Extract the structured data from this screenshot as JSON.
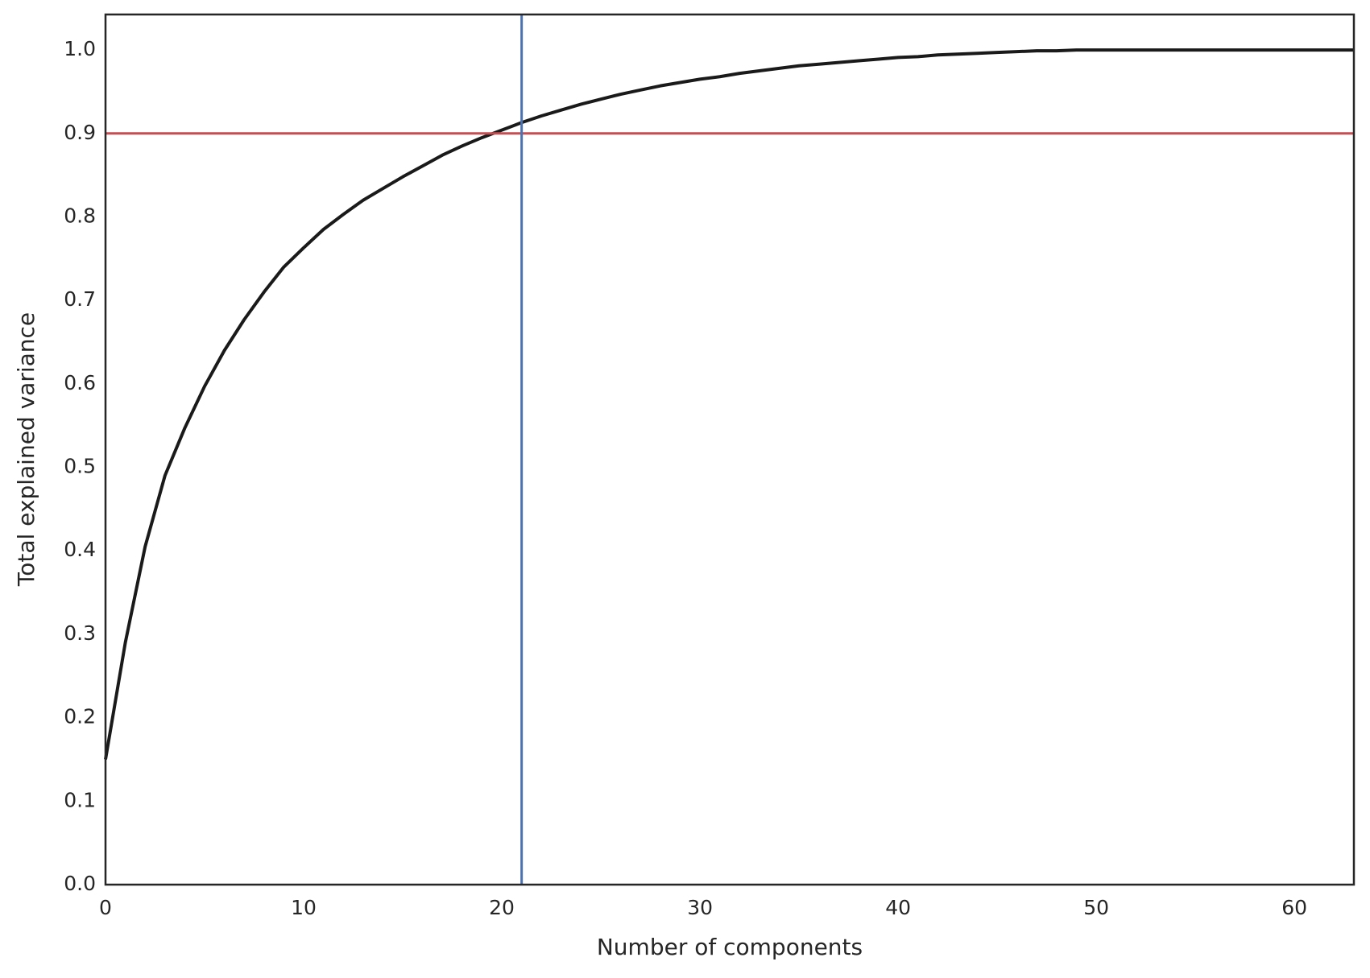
{
  "chart_data": {
    "type": "line",
    "xlabel": "Number of components",
    "ylabel": "Total explained variance",
    "x": [
      0,
      1,
      2,
      3,
      4,
      5,
      6,
      7,
      8,
      9,
      10,
      11,
      12,
      13,
      14,
      15,
      16,
      17,
      18,
      19,
      20,
      21,
      22,
      23,
      24,
      25,
      26,
      27,
      28,
      29,
      30,
      31,
      32,
      33,
      34,
      35,
      36,
      37,
      38,
      39,
      40,
      41,
      42,
      43,
      44,
      45,
      46,
      47,
      48,
      49,
      50,
      51,
      52,
      53,
      54,
      55,
      56,
      57,
      58,
      59,
      60,
      61,
      62,
      63
    ],
    "series": [
      {
        "color": "#1a1a1a",
        "values": [
          0.15,
          0.29,
          0.405,
          0.49,
          0.547,
          0.597,
          0.64,
          0.677,
          0.71,
          0.74,
          0.763,
          0.785,
          0.803,
          0.82,
          0.834,
          0.848,
          0.861,
          0.874,
          0.885,
          0.895,
          0.904,
          0.913,
          0.921,
          0.928,
          0.935,
          0.941,
          0.947,
          0.952,
          0.957,
          0.961,
          0.965,
          0.968,
          0.972,
          0.975,
          0.978,
          0.981,
          0.983,
          0.985,
          0.987,
          0.989,
          0.991,
          0.992,
          0.994,
          0.995,
          0.996,
          0.997,
          0.998,
          0.999,
          0.999,
          1.0,
          1.0,
          1.0,
          1.0,
          1.0,
          1.0,
          1.0,
          1.0,
          1.0,
          1.0,
          1.0,
          1.0,
          1.0,
          1.0,
          1.0
        ]
      }
    ],
    "hlines": [
      {
        "value": 0.9,
        "color": "#c44e52"
      }
    ],
    "vlines": [
      {
        "value": 21,
        "color": "#4c72b0"
      }
    ],
    "xlim": [
      0,
      63
    ],
    "ylim": [
      0,
      1.0425
    ],
    "xticks": [
      0,
      10,
      20,
      30,
      40,
      50,
      60
    ],
    "yticks": [
      {
        "value": 0,
        "label": "0.0"
      },
      0.1,
      0.2,
      0.3,
      0.4,
      0.5,
      0.6,
      0.7,
      0.8,
      0.9,
      {
        "value": 1,
        "label": "1.0"
      }
    ],
    "grid": false
  }
}
